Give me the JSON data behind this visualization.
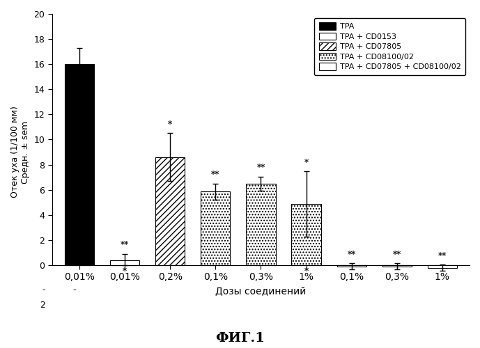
{
  "bars": [
    {
      "label": "0,01%",
      "value": 16.0,
      "yerr_up": 1.3,
      "yerr_down": 1.3,
      "color": "black",
      "hatch": null,
      "group": "TPA"
    },
    {
      "label": "0,01%",
      "value": 0.4,
      "yerr_up": 0.5,
      "yerr_down": 0.4,
      "color": "white",
      "hatch": null,
      "group": "TPA + CD0153"
    },
    {
      "label": "0,2%",
      "value": 8.6,
      "yerr_up": 1.9,
      "yerr_down": 1.9,
      "color": "white",
      "hatch": "////",
      "group": "TPA + CD07805"
    },
    {
      "label": "0,1%",
      "value": 5.85,
      "yerr_up": 0.65,
      "yerr_down": 0.65,
      "color": "white",
      "hatch": "....",
      "group": "TPA + CD08100/02"
    },
    {
      "label": "0,3%",
      "value": 6.5,
      "yerr_up": 0.55,
      "yerr_down": 0.55,
      "color": "white",
      "hatch": "....",
      "group": "TPA + CD08100/02"
    },
    {
      "label": "1%",
      "value": 4.85,
      "yerr_up": 2.6,
      "yerr_down": 2.6,
      "color": "white",
      "hatch": "....",
      "group": "TPA + CD08100/02"
    },
    {
      "label": "0,1%",
      "value": -0.1,
      "yerr_up": 0.25,
      "yerr_down": 0.25,
      "color": "white",
      "hatch": null,
      "group": "TPA + CD07805 + CD08100/02"
    },
    {
      "label": "0,3%",
      "value": -0.1,
      "yerr_up": 0.25,
      "yerr_down": 0.25,
      "color": "white",
      "hatch": null,
      "group": "TPA + CD07805 + CD08100/02"
    },
    {
      "label": "1%",
      "value": -0.2,
      "yerr_up": 0.25,
      "yerr_down": 0.25,
      "color": "white",
      "hatch": null,
      "group": "TPA + CD07805 + CD08100/02"
    }
  ],
  "significance_above": [
    "",
    "**",
    "*",
    "**",
    "**",
    "*",
    "**",
    "**",
    "**"
  ],
  "significance_below": [
    "",
    "*",
    "",
    "",
    "",
    "*",
    "",
    "",
    ""
  ],
  "ylabel": "Отек уха (1/100 мм)\nСредн. ± sem",
  "xlabel": "Дозы соединений",
  "title_bottom": "ФИГ.1",
  "ylim_min": -2,
  "ylim_max": 20,
  "yticks": [
    0,
    2,
    4,
    6,
    8,
    10,
    12,
    14,
    16,
    18,
    20
  ],
  "legend_labels": [
    "TPA",
    "TPA + CD0153",
    "TPA + CD07805",
    "TPA + CD08100/02",
    "TPA + CD07805 + CD08100/02"
  ],
  "legend_colors": [
    "black",
    "white",
    "white",
    "white",
    "white"
  ],
  "legend_hatches": [
    null,
    null,
    "////",
    "....",
    null
  ],
  "bar_width": 0.65,
  "background_color": "white",
  "fig_width": 6.89,
  "fig_height": 5.0,
  "dpi": 100
}
